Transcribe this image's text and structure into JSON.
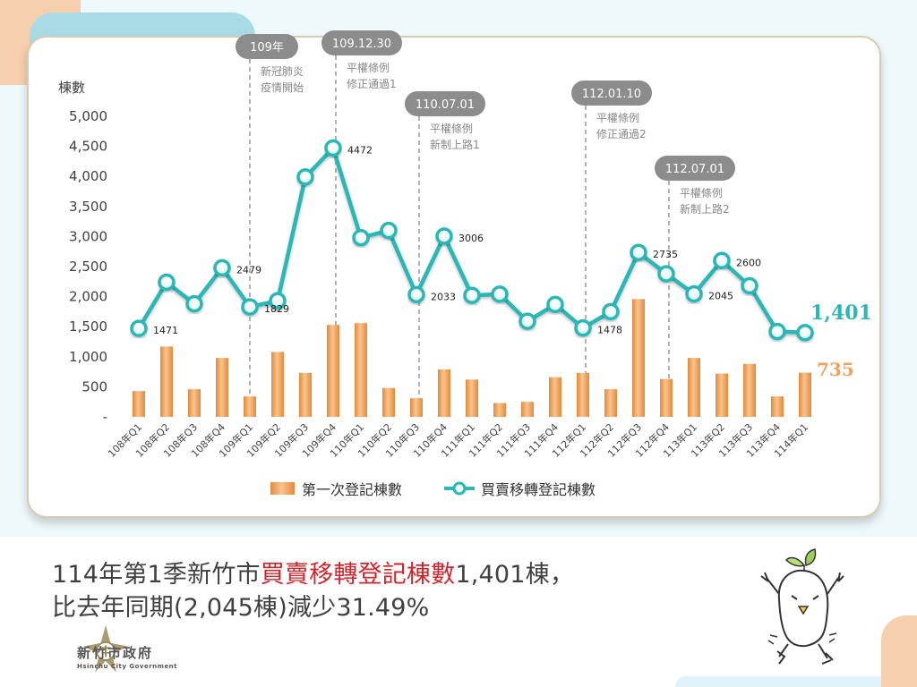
{
  "chart_data": {
    "type": "bar+line",
    "ylabel": "棟數",
    "ylim": [
      0,
      5000
    ],
    "yticks": [
      {
        "value": 0,
        "label": "-"
      },
      {
        "value": 500,
        "label": "500"
      },
      {
        "value": 1000,
        "label": "1,000"
      },
      {
        "value": 1500,
        "label": "1,500"
      },
      {
        "value": 2000,
        "label": "2,000"
      },
      {
        "value": 2500,
        "label": "2,500"
      },
      {
        "value": 3000,
        "label": "3,000"
      },
      {
        "value": 3500,
        "label": "3,500"
      },
      {
        "value": 4000,
        "label": "4,000"
      },
      {
        "value": 4500,
        "label": "4,500"
      },
      {
        "value": 5000,
        "label": "5,000"
      }
    ],
    "categories": [
      "108年Q1",
      "108年Q2",
      "108年Q3",
      "108年Q4",
      "109年Q1",
      "109年Q2",
      "109年Q3",
      "109年Q4",
      "110年Q1",
      "110年Q2",
      "110年Q3",
      "110年Q4",
      "111年Q1",
      "111年Q2",
      "111年Q3",
      "111年Q4",
      "112年Q1",
      "112年Q2",
      "112年Q3",
      "112年Q4",
      "113年Q1",
      "113年Q2",
      "113年Q3",
      "113年Q4",
      "114年Q1"
    ],
    "series": [
      {
        "name": "第一次登記棟數",
        "kind": "bar",
        "color": "#f0a15e",
        "values": [
          430,
          1170,
          460,
          980,
          340,
          1080,
          730,
          1530,
          1560,
          480,
          310,
          790,
          620,
          230,
          250,
          660,
          730,
          460,
          1960,
          630,
          980,
          720,
          880,
          340,
          735
        ]
      },
      {
        "name": "買賣移轉登記棟數",
        "kind": "line",
        "color": "#2ab7b5",
        "values": [
          1471,
          2240,
          1880,
          2479,
          1829,
          1930,
          3990,
          4472,
          2980,
          3100,
          2033,
          3006,
          2020,
          2040,
          1590,
          1870,
          1478,
          1750,
          2735,
          2380,
          2045,
          2600,
          2180,
          1420,
          1401
        ]
      }
    ],
    "data_labels": [
      {
        "index": 0,
        "text": "1471"
      },
      {
        "index": 3,
        "text": "2479"
      },
      {
        "index": 4,
        "text": "1829"
      },
      {
        "index": 7,
        "text": "4472"
      },
      {
        "index": 10,
        "text": "2033"
      },
      {
        "index": 11,
        "text": "3006"
      },
      {
        "index": 16,
        "text": "1478"
      },
      {
        "index": 18,
        "text": "2735"
      },
      {
        "index": 20,
        "text": "2045"
      },
      {
        "index": 21,
        "text": "2600"
      }
    ],
    "end_labels": {
      "line": "1,401",
      "bar": "735"
    },
    "annotations": [
      {
        "after_index": 4,
        "date": "109年",
        "lines": [
          "新冠肺炎",
          "疫情開始"
        ]
      },
      {
        "after_index": 7,
        "date": "109.12.30",
        "lines": [
          "平權條例",
          "修正通過1"
        ]
      },
      {
        "after_index": 10,
        "date": "110.07.01",
        "lines": [
          "平權條例",
          "新制上路1"
        ]
      },
      {
        "after_index": 16,
        "date": "112.01.10",
        "lines": [
          "平權條例",
          "修正通過2"
        ]
      },
      {
        "after_index": 19,
        "date": "112.07.01",
        "lines": [
          "平權條例",
          "新制上路2"
        ]
      }
    ],
    "legend": "bottom-center"
  },
  "footer": {
    "line1_pre": "114年第1季新竹市",
    "line1_highlight": "買賣移轉登記棟數",
    "line1_post": "1,401棟，",
    "line2": "比去年同期(2,045棟)減少31.49%"
  },
  "logo": {
    "name": "新竹市政府",
    "english": "Hsinchu City Government"
  },
  "colors": {
    "bar": "#f0a15e",
    "line": "#2ab7b5",
    "highlight": "#d6232a",
    "annotation_box": "#8c8c8c"
  }
}
